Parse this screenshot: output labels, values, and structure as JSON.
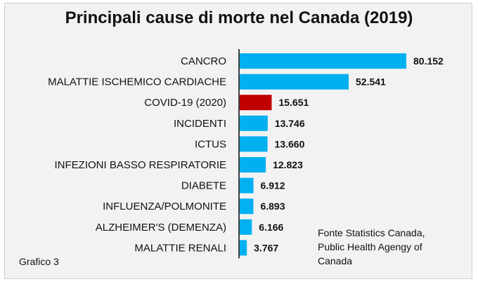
{
  "chart_data": {
    "type": "bar",
    "orientation": "horizontal",
    "title": "Principali cause di morte nel Canada (2019)",
    "categories": [
      "CANCRO",
      "MALATTIE ISCHEMICO CARDIACHE",
      "COVID-19 (2020)",
      "INCIDENTI",
      "ICTUS",
      "INFEZIONI BASSO RESPIRATORIE",
      "DIABETE",
      "INFLUENZA/POLMONITE",
      "ALZHEIMER'S (DEMENZA)",
      "MALATTIE RENALI"
    ],
    "values": [
      80152,
      52541,
      15651,
      13746,
      13660,
      12823,
      6912,
      6893,
      6166,
      3767
    ],
    "value_labels": [
      "80.152",
      "52.541",
      "15.651",
      "13.746",
      "13.660",
      "12.823",
      "6.912",
      "6.893",
      "6.166",
      "3.767"
    ],
    "xlim": [
      0,
      80152
    ],
    "colors": {
      "default": "#00b0f0",
      "highlight": "#c00000",
      "highlight_category": "COVID-19 (2020)",
      "axis": "#404040"
    },
    "grid": false,
    "legend": "none"
  },
  "source_note": "Fonte Statistics Canada,\nPublic Health Agengy of\nCanada",
  "figure_label": "Grafico 3"
}
